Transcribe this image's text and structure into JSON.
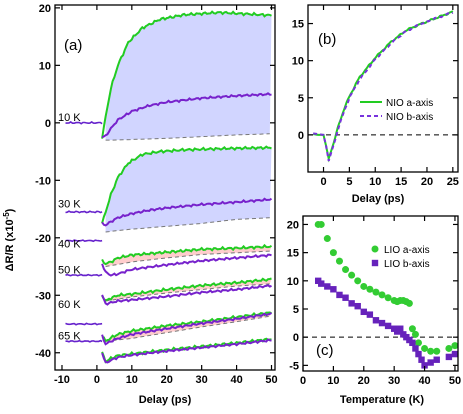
{
  "chart_data": [
    {
      "panel": "(a)",
      "type": "line",
      "xlabel": "Delay (ps)",
      "ylabel": "ΔR/R (x10",
      "ylabel_sup": "-5",
      "ylabel_close": ")",
      "xlim": [
        -12,
        51
      ],
      "ylim": [
        -43,
        20.5
      ],
      "xticks": [
        -10,
        0,
        10,
        20,
        30,
        40,
        50
      ],
      "yticks": [
        -40,
        -30,
        -20,
        -10,
        0,
        10,
        20
      ],
      "temperature_labels": [
        {
          "text": "10 K",
          "y": 1
        },
        {
          "text": "30 K",
          "y": -14
        },
        {
          "text": "40 K",
          "y": -21
        },
        {
          "text": "50 K",
          "y": -25.5
        },
        {
          "text": "60 K",
          "y": -31.5
        },
        {
          "text": "65 K",
          "y": -37
        }
      ],
      "traces": [
        {
          "temp": "10 K",
          "offset": 0,
          "pre_noise": 0.15,
          "fill": "#ccd0ff",
          "green_x": [
            1.5,
            2.5,
            4,
            6,
            9,
            13,
            18,
            25,
            35,
            50
          ],
          "green_y": [
            -2.5,
            1,
            6,
            10,
            14,
            16.5,
            18,
            18.8,
            19.2,
            18.7
          ],
          "purple_x": [
            1.5,
            2.5,
            4,
            6,
            10,
            15,
            20,
            30,
            40,
            50
          ],
          "purple_y": [
            -2.5,
            -2.3,
            -1,
            0.5,
            2,
            3,
            3.6,
            4.3,
            4.7,
            5
          ],
          "dashed_x": [
            2.5,
            5,
            10,
            20,
            30,
            40,
            50
          ],
          "dashed_y": [
            -3,
            -3,
            -2.9,
            -2.7,
            -2.4,
            -2.1,
            -1.9
          ]
        },
        {
          "temp": "30 K",
          "offset": -15.5,
          "pre_noise": 0.15,
          "fill": "#ccd0ff",
          "green_x": [
            1.5,
            2.5,
            4,
            6,
            9,
            13,
            18,
            25,
            35,
            50
          ],
          "green_y": [
            -17.5,
            -15.5,
            -12.5,
            -9.5,
            -7,
            -5.5,
            -5,
            -4.7,
            -4.5,
            -4.3
          ],
          "purple_x": [
            1.5,
            2.5,
            4,
            6,
            10,
            15,
            20,
            30,
            40,
            50
          ],
          "purple_y": [
            -17.5,
            -17.8,
            -17.2,
            -16.5,
            -15.8,
            -15.2,
            -14.8,
            -14.2,
            -13.8,
            -13.3
          ],
          "dashed_x": [
            2.5,
            5,
            10,
            20,
            30,
            40,
            50
          ],
          "dashed_y": [
            -19,
            -18.8,
            -18.5,
            -18,
            -17.5,
            -16.8,
            -16.5
          ]
        },
        {
          "temp": "50 K",
          "offset": -20.5,
          "pre_noise": 0.12,
          "fill": "#ffc8c8",
          "green_x": [
            1.5,
            2.5,
            4,
            6,
            10,
            20,
            30,
            40,
            50
          ],
          "green_y": [
            -24,
            -24.5,
            -24.2,
            -23.5,
            -23,
            -22.5,
            -22,
            -21.8,
            -21.5
          ],
          "purple_x": [
            1.5,
            2.5,
            4,
            6,
            10,
            20,
            30,
            40,
            50
          ],
          "purple_y": [
            -24.5,
            -26,
            -26.5,
            -26.3,
            -25.5,
            -24.7,
            -24,
            -23.5,
            -23
          ],
          "dashed_x": [
            2.5,
            10,
            20,
            30,
            40,
            50
          ],
          "dashed_y": [
            -25,
            -24.2,
            -23.5,
            -22.9,
            -22.6,
            -22.3
          ]
        },
        {
          "temp": "60 K",
          "offset": -26.5,
          "pre_noise": 0.12,
          "fill": "#ffc8c8",
          "green_x": [
            1.5,
            2.5,
            4,
            6,
            10,
            20,
            30,
            40,
            50
          ],
          "green_y": [
            -30,
            -31,
            -30.5,
            -30,
            -29.8,
            -29,
            -28.3,
            -27.8,
            -27.2
          ],
          "purple_x": [
            1.5,
            2.5,
            4,
            6,
            10,
            20,
            30,
            40,
            50
          ],
          "purple_y": [
            -30,
            -31.5,
            -31.3,
            -31,
            -30.8,
            -30.2,
            -29.5,
            -29,
            -28.3
          ],
          "dashed_x": [
            2.5,
            10,
            20,
            30,
            40,
            50
          ],
          "dashed_y": [
            -31,
            -30.3,
            -29.6,
            -29,
            -28.4,
            -28
          ]
        },
        {
          "temp": "65 K",
          "offset": -35,
          "pre_noise": 0.12,
          "fill": "#ffc8c8",
          "green_x": [
            1.5,
            2.5,
            4,
            6,
            10,
            20,
            30,
            40,
            50
          ],
          "green_y": [
            -37,
            -38,
            -37.4,
            -36.8,
            -36.2,
            -35.3,
            -34.6,
            -33.8,
            -33
          ],
          "purple_x": [
            1.5,
            2.5,
            4,
            6,
            10,
            20,
            30,
            40,
            50
          ],
          "purple_y": [
            -37,
            -38.5,
            -38,
            -37.5,
            -36.8,
            -35.8,
            -34.9,
            -34.1,
            -33.2
          ],
          "dashed_x": [
            2.5,
            10,
            20,
            30,
            40,
            50
          ],
          "dashed_y": [
            -38,
            -37.5,
            -36.5,
            -35.5,
            -34.6,
            -33.6
          ]
        },
        {
          "temp": "",
          "offset": -38,
          "pre_noise": 0.12,
          "fill": "none",
          "green_x": [
            1.5,
            2.5,
            4,
            6,
            10,
            20,
            30,
            40,
            50
          ],
          "green_y": [
            -40,
            -41.5,
            -41,
            -40.5,
            -40.2,
            -39.5,
            -38.9,
            -38.3,
            -37.6
          ],
          "purple_x": [
            1.5,
            2.5,
            4,
            6,
            10,
            20,
            30,
            40,
            50
          ],
          "purple_y": [
            -40,
            -41.8,
            -41.3,
            -40.8,
            -40.4,
            -39.7,
            -39.1,
            -38.5,
            -37.8
          ],
          "dashed_x": [],
          "dashed_y": []
        }
      ]
    },
    {
      "panel": "(b)",
      "type": "line",
      "xlabel": "Delay (ps)",
      "xlim": [
        -3,
        26
      ],
      "ylim": [
        -5,
        17.5
      ],
      "xticks": [
        0,
        5,
        10,
        15,
        20,
        25
      ],
      "yticks": [
        0,
        5,
        10,
        15
      ],
      "dashed_zero": true,
      "series": [
        {
          "name": "NIO a-axis",
          "color": "#22cc22",
          "dash": "",
          "x": [
            -2,
            -1,
            0,
            0.5,
            1,
            2,
            3,
            4,
            5,
            7,
            10,
            13,
            16,
            19,
            22,
            25
          ],
          "y": [
            0.1,
            0,
            0,
            -1.5,
            -3.2,
            -1,
            1.5,
            3.5,
            5.2,
            7.8,
            10.4,
            12.5,
            14.1,
            15,
            15.8,
            16.6
          ]
        },
        {
          "name": "NIO b-axis",
          "color": "#7733dd",
          "dash": "4,3",
          "x": [
            -2,
            -1,
            0,
            0.5,
            1,
            2,
            3,
            4,
            5,
            7,
            10,
            13,
            16,
            19,
            22,
            25
          ],
          "y": [
            0.2,
            0.1,
            0,
            -1.5,
            -3.5,
            -1.2,
            1.2,
            3.2,
            5,
            7.5,
            10.2,
            12.3,
            14,
            15,
            15.8,
            16.5
          ]
        }
      ]
    },
    {
      "panel": "(c)",
      "type": "scatter",
      "xlabel": "Temperature (K)",
      "xlim": [
        0,
        51
      ],
      "ylim": [
        -6,
        21.5
      ],
      "xticks": [
        0,
        10,
        20,
        30,
        40,
        50
      ],
      "yticks": [
        -5,
        0,
        5,
        10,
        15,
        20
      ],
      "dashed_zero": true,
      "series": [
        {
          "name": "LIO a-axis",
          "color": "#33cc33",
          "marker": "circle",
          "x": [
            5,
            6,
            8,
            10,
            12,
            14,
            16,
            18,
            20,
            22,
            24,
            26,
            28,
            30,
            31,
            32,
            33,
            34,
            35,
            36,
            37,
            38,
            40,
            42,
            44,
            48,
            50
          ],
          "y": [
            20,
            20,
            17.5,
            15,
            13.5,
            12,
            11,
            10,
            9,
            8.5,
            8,
            7.5,
            7,
            6.5,
            6.3,
            6.5,
            6.5,
            6.3,
            6,
            1.5,
            0.5,
            -1,
            -2,
            -2.5,
            -2.5,
            -2,
            -1.5
          ]
        },
        {
          "name": "LIO b-axis",
          "color": "#6622bb",
          "marker": "square",
          "x": [
            5,
            6,
            8,
            10,
            12,
            14,
            16,
            18,
            20,
            22,
            24,
            26,
            28,
            30,
            31,
            32,
            33,
            34,
            35,
            36,
            37,
            38,
            39,
            40,
            42,
            44,
            48,
            50
          ],
          "y": [
            10,
            9.5,
            9,
            8.5,
            7.5,
            7,
            6,
            5.5,
            4.5,
            4,
            3,
            2.5,
            2,
            1.5,
            1,
            1.5,
            0.5,
            0,
            -0.5,
            -1,
            -2,
            -3,
            -4,
            -5,
            -4.5,
            -4,
            -3.5,
            -3
          ]
        }
      ]
    }
  ]
}
